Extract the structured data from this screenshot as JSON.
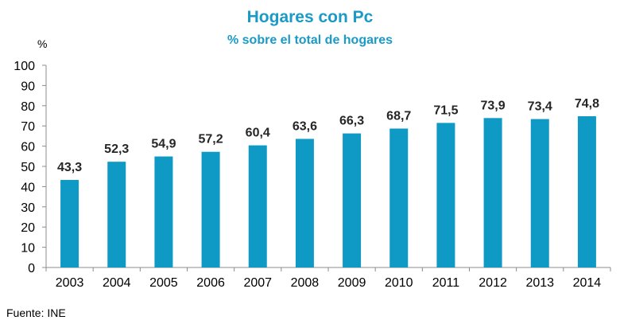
{
  "chart_data": {
    "type": "bar",
    "title": "Hogares con Pc",
    "subtitle": "% sobre el total de hogares",
    "ylabel": "%",
    "categories": [
      "2003",
      "2004",
      "2005",
      "2006",
      "2007",
      "2008",
      "2009",
      "2010",
      "2011",
      "2012",
      "2013",
      "2014"
    ],
    "values": [
      43.3,
      52.3,
      54.9,
      57.2,
      60.4,
      63.6,
      66.3,
      68.7,
      71.5,
      73.9,
      73.4,
      74.8
    ],
    "data_labels": [
      "43,3",
      "52,3",
      "54,9",
      "57,2",
      "60,4",
      "63,6",
      "66,3",
      "68,7",
      "71,5",
      "73,9",
      "73,4",
      "74,8"
    ],
    "ylim": [
      0,
      100
    ],
    "yticks": [
      "0",
      "10",
      "20",
      "30",
      "40",
      "50",
      "60",
      "70",
      "80",
      "90",
      "100"
    ],
    "grid": false,
    "legend": "none",
    "bar_color": "#0f9ac6"
  },
  "source": "Fuente: INE"
}
